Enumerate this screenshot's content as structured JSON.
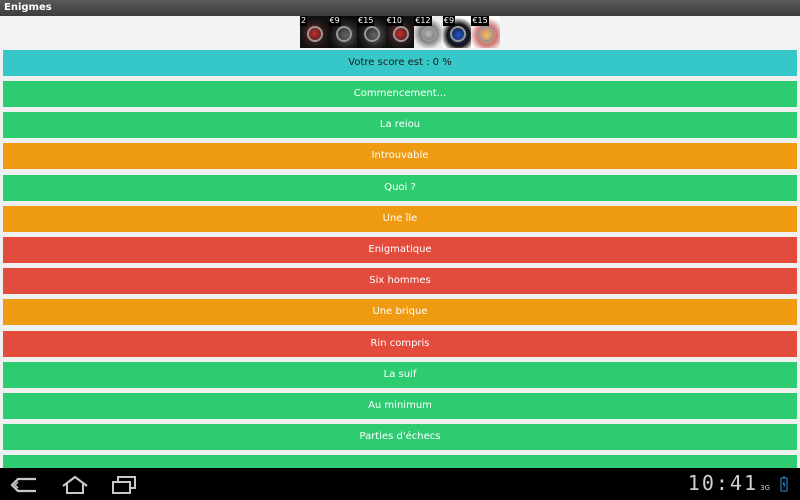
{
  "app": {
    "title": "Enigmes"
  },
  "ads": [
    {
      "price": "2",
      "style": "red"
    },
    {
      "price": "€9",
      "style": "dark"
    },
    {
      "price": "€15",
      "style": "dark"
    },
    {
      "price": "€10",
      "style": "red"
    },
    {
      "price": "€12",
      "style": "light"
    },
    {
      "price": "€9",
      "style": "blue"
    },
    {
      "price": "€15",
      "style": "gold"
    }
  ],
  "score": {
    "label": "Votre score est : 0 %"
  },
  "riddles": [
    {
      "label": "Commencement...",
      "color": "#2ecc71"
    },
    {
      "label": "La reiou",
      "color": "#2ecc71"
    },
    {
      "label": "Introuvable",
      "color": "#ee9b12"
    },
    {
      "label": "Quoi ?",
      "color": "#2ecc71"
    },
    {
      "label": "Une île",
      "color": "#ee9b12"
    },
    {
      "label": "Enigmatique",
      "color": "#e34b3c"
    },
    {
      "label": "Six hommes",
      "color": "#e34b3c"
    },
    {
      "label": "Une brique",
      "color": "#ee9b12"
    },
    {
      "label": "Rin compris",
      "color": "#e34b3c"
    },
    {
      "label": "La suif",
      "color": "#2ecc71"
    },
    {
      "label": "Au minimum",
      "color": "#2ecc71"
    },
    {
      "label": "Parties d'échecs",
      "color": "#2ecc71"
    },
    {
      "label": "",
      "color": "#2ecc71"
    }
  ],
  "statusbar": {
    "time": "10:41",
    "network": "3G"
  }
}
